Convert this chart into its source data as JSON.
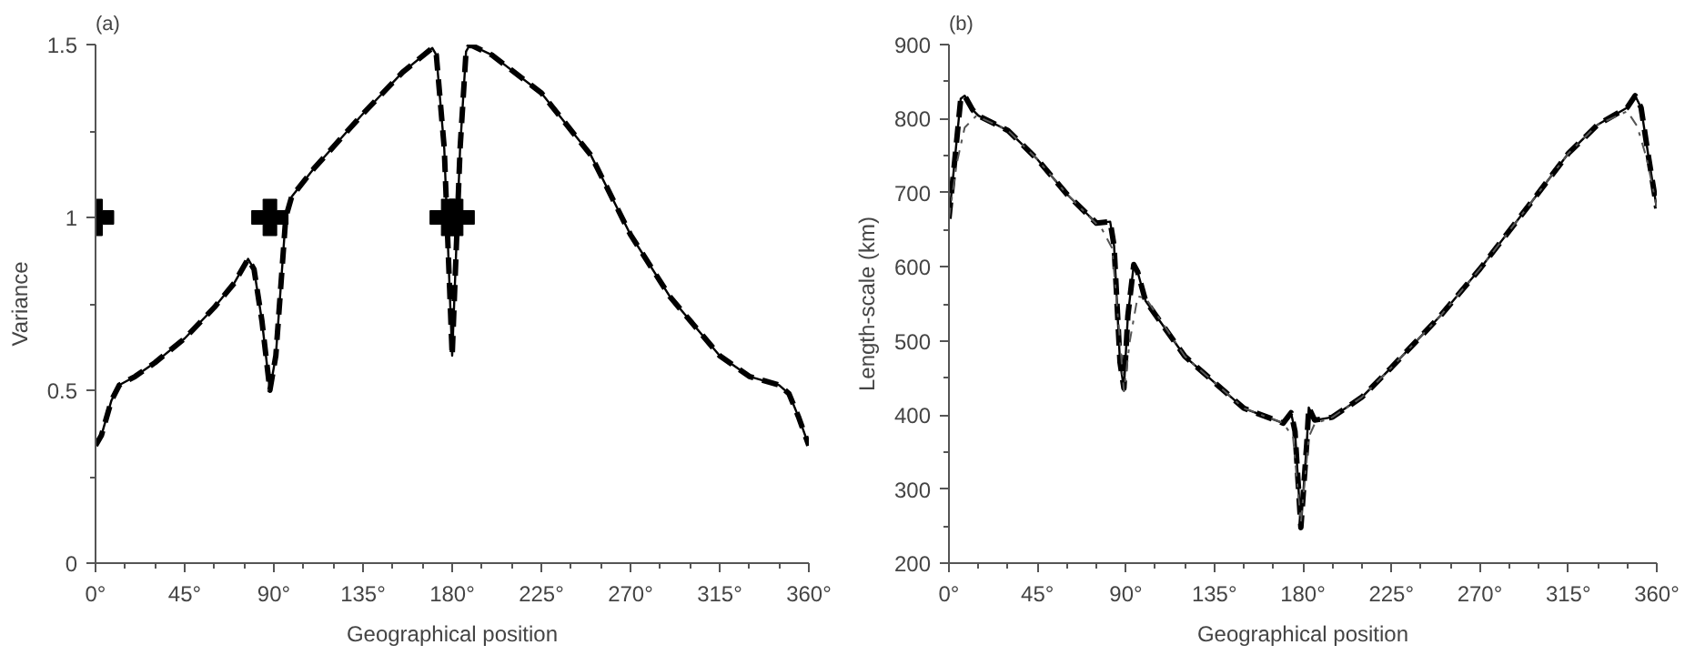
{
  "chart_data": [
    {
      "type": "line",
      "title": "(a)",
      "xlabel": "Geographical position",
      "ylabel": "Variance",
      "xlim": [
        0,
        360
      ],
      "ylim": [
        0,
        1.5
      ],
      "xticks": [
        {
          "value": 0,
          "label": "0°"
        },
        {
          "value": 45,
          "label": "45°"
        },
        {
          "value": 90,
          "label": "90°"
        },
        {
          "value": 135,
          "label": "135°"
        },
        {
          "value": 180,
          "label": "180°"
        },
        {
          "value": 225,
          "label": "225°"
        },
        {
          "value": 270,
          "label": "270°"
        },
        {
          "value": 315,
          "label": "315°"
        },
        {
          "value": 360,
          "label": "360°"
        }
      ],
      "yticks": [
        0,
        0.5,
        1,
        1.5
      ],
      "grid": false,
      "series": [
        {
          "color": "#000000",
          "line_style": "solid",
          "x": [
            0,
            3,
            8,
            12,
            20,
            30,
            45,
            60,
            70,
            77,
            80,
            84,
            88,
            91,
            94,
            96,
            99,
            110,
            135,
            155,
            170,
            172,
            176,
            180,
            184,
            187,
            189,
            200,
            225,
            250,
            270,
            290,
            315,
            330,
            345,
            350,
            355,
            360
          ],
          "values": [
            0.34,
            0.37,
            0.47,
            0.515,
            0.54,
            0.58,
            0.65,
            0.74,
            0.81,
            0.88,
            0.85,
            0.7,
            0.5,
            0.6,
            0.84,
            1.0,
            1.06,
            1.14,
            1.3,
            1.42,
            1.49,
            1.47,
            1.2,
            0.6,
            1.2,
            1.48,
            1.5,
            1.47,
            1.36,
            1.18,
            0.95,
            0.77,
            0.6,
            0.54,
            0.515,
            0.49,
            0.42,
            0.34
          ]
        },
        {
          "color": "#000000",
          "line_style": "dashed",
          "x": [
            0,
            3,
            8,
            12,
            20,
            30,
            45,
            60,
            70,
            77,
            80,
            84,
            88,
            91,
            94,
            96,
            99,
            110,
            135,
            155,
            170,
            172,
            176,
            180,
            184,
            187,
            189,
            200,
            225,
            250,
            270,
            290,
            315,
            330,
            345,
            350,
            355,
            360
          ],
          "values": [
            0.34,
            0.37,
            0.47,
            0.515,
            0.54,
            0.58,
            0.65,
            0.74,
            0.81,
            0.88,
            0.85,
            0.7,
            0.5,
            0.6,
            0.84,
            1.0,
            1.06,
            1.14,
            1.3,
            1.42,
            1.49,
            1.47,
            1.2,
            0.6,
            1.2,
            1.48,
            1.5,
            1.47,
            1.36,
            1.18,
            0.95,
            0.77,
            0.6,
            0.54,
            0.515,
            0.49,
            0.42,
            0.34
          ]
        },
        {
          "type": "scatter",
          "color": "#000000",
          "marker": "cross",
          "x": [
            0,
            88,
            178,
            182
          ],
          "values": [
            1,
            1,
            1,
            1
          ]
        }
      ]
    },
    {
      "type": "line",
      "title": "(b)",
      "xlabel": "Geographical position",
      "ylabel": "Length-scale (km)",
      "xlim": [
        0,
        360
      ],
      "ylim": [
        200,
        900
      ],
      "xticks": [
        {
          "value": 0,
          "label": "0°"
        },
        {
          "value": 45,
          "label": "45°"
        },
        {
          "value": 90,
          "label": "90°"
        },
        {
          "value": 135,
          "label": "135°"
        },
        {
          "value": 180,
          "label": "180°"
        },
        {
          "value": 225,
          "label": "225°"
        },
        {
          "value": 270,
          "label": "270°"
        },
        {
          "value": 315,
          "label": "315°"
        },
        {
          "value": 360,
          "label": "360°"
        }
      ],
      "yticks": [
        200,
        300,
        400,
        500,
        600,
        700,
        800,
        900
      ],
      "grid": false,
      "series": [
        {
          "color": "#000000",
          "line_style": "solid",
          "x": [
            0,
            3,
            6,
            8,
            12,
            15,
            30,
            45,
            60,
            75,
            82,
            84,
            87,
            89,
            91,
            94,
            96,
            100,
            120,
            135,
            150,
            170,
            174,
            176,
            179,
            182,
            183,
            186,
            195,
            210,
            225,
            250,
            270,
            295,
            315,
            330,
            345,
            349,
            352,
            356,
            360
          ],
          "values": [
            665,
            745,
            827,
            831,
            812,
            804,
            784,
            745,
            698,
            659,
            661,
            628,
            471,
            436,
            534,
            603,
            593,
            554,
            479,
            444,
            409,
            389,
            403,
            378,
            248,
            362,
            410,
            393,
            397,
            424,
            464,
            534,
            597,
            683,
            753,
            792,
            815,
            831,
            815,
            745,
            679
          ]
        },
        {
          "color": "#000000",
          "line_style": "dashed",
          "x": [
            0,
            3,
            6,
            8,
            12,
            15,
            30,
            45,
            60,
            75,
            82,
            84,
            87,
            89,
            91,
            94,
            96,
            100,
            120,
            135,
            150,
            170,
            174,
            176,
            179,
            182,
            183,
            186,
            195,
            210,
            225,
            250,
            270,
            295,
            315,
            330,
            345,
            349,
            352,
            356,
            360
          ],
          "values": [
            665,
            745,
            827,
            831,
            812,
            804,
            784,
            745,
            698,
            659,
            661,
            628,
            471,
            436,
            534,
            603,
            593,
            554,
            479,
            444,
            409,
            389,
            403,
            378,
            248,
            362,
            410,
            393,
            397,
            424,
            464,
            534,
            597,
            683,
            753,
            792,
            815,
            831,
            815,
            745,
            679
          ]
        },
        {
          "color": "#555555",
          "line_style": "dashdot",
          "x": [
            0,
            4,
            8,
            14,
            30,
            45,
            60,
            78,
            83,
            87,
            89,
            92,
            96,
            100,
            120,
            135,
            150,
            170,
            175,
            179,
            183,
            186,
            195,
            210,
            225,
            250,
            270,
            295,
            315,
            330,
            345,
            350,
            355,
            360
          ],
          "values": [
            665,
            740,
            788,
            804,
            784,
            745,
            698,
            650,
            625,
            500,
            432,
            500,
            560,
            558,
            479,
            444,
            409,
            389,
            370,
            255,
            370,
            388,
            397,
            424,
            464,
            534,
            597,
            683,
            753,
            792,
            810,
            790,
            745,
            680
          ]
        }
      ]
    }
  ]
}
